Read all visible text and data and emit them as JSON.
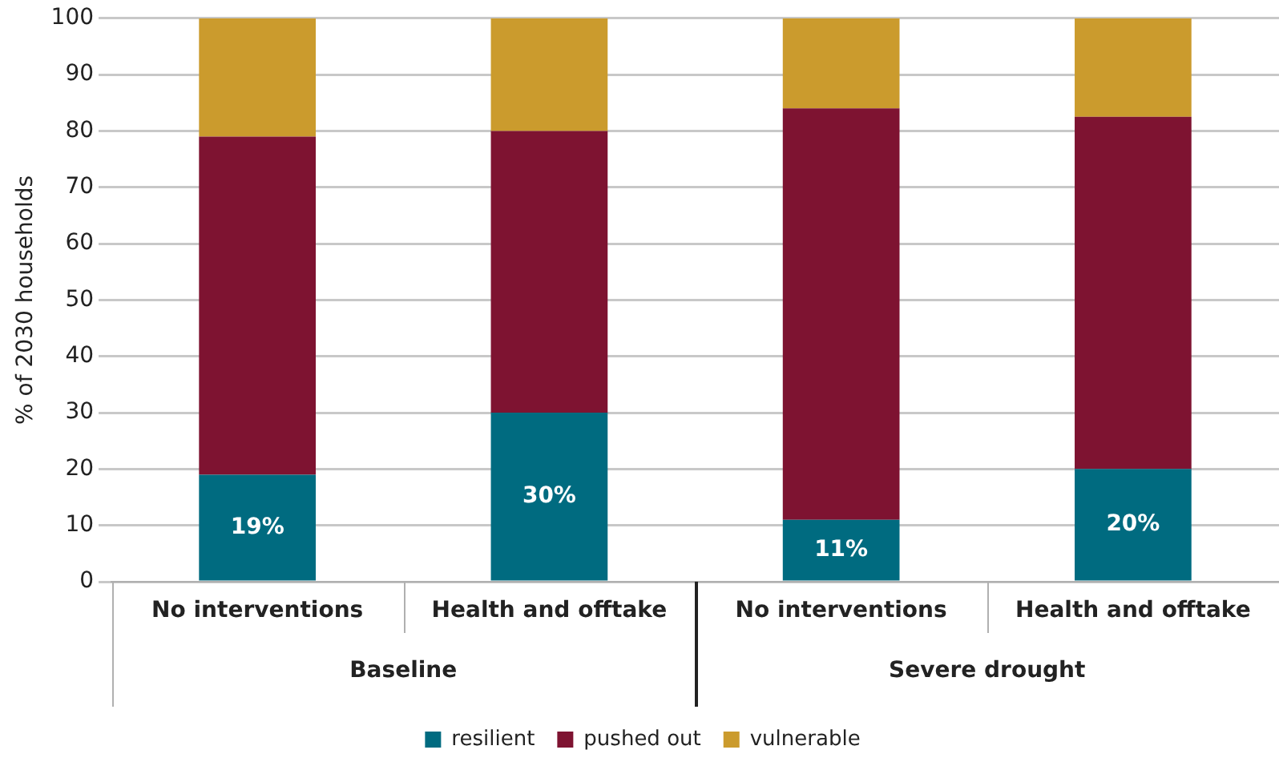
{
  "chart_data": {
    "type": "bar",
    "stacked": true,
    "ylabel": "% of 2030 households",
    "categories": [
      "No interventions",
      "Health and offtake",
      "No interventions",
      "Health and offtake"
    ],
    "annotations": [
      "Baseline",
      "Severe drought"
    ],
    "series": [
      {
        "name": "resilient",
        "color": "#006b80",
        "values": [
          19,
          30,
          11,
          20
        ],
        "value_labels": [
          "19%",
          "30%",
          "11%",
          "20%"
        ]
      },
      {
        "name": "pushed out",
        "color": "#7e1331",
        "values": [
          60,
          50,
          73,
          62.5
        ]
      },
      {
        "name": "vulnerable",
        "color": "#cb9b2d",
        "values": [
          21,
          20,
          16,
          17.5
        ]
      }
    ],
    "ylim": [
      0,
      100
    ],
    "yticks": [
      0,
      10,
      20,
      30,
      40,
      50,
      60,
      70,
      80,
      90,
      100
    ],
    "grid": "y",
    "legend": "bottom"
  }
}
